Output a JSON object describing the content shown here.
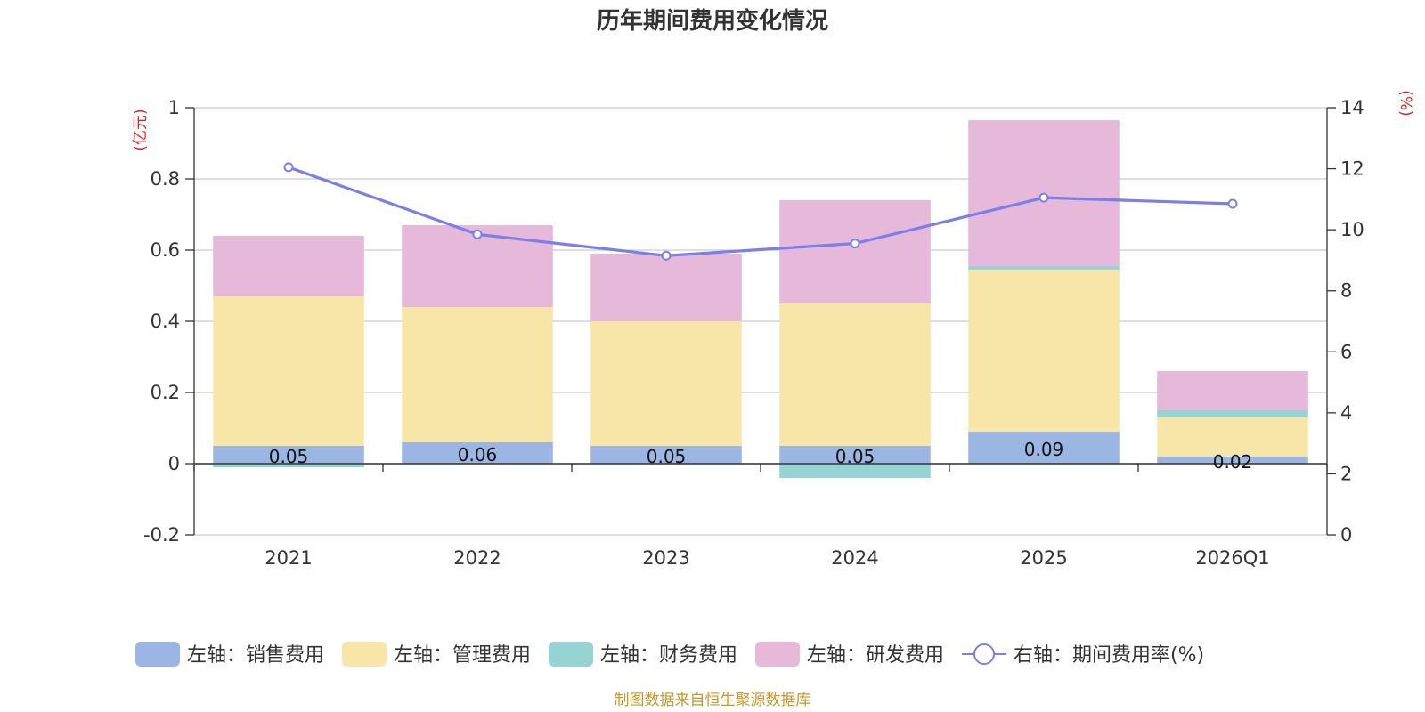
{
  "chart_data": {
    "type": "bar",
    "title": "历年期间费用变化情况",
    "categories": [
      "2021",
      "2022",
      "2023",
      "2024",
      "2025",
      "2026Q1"
    ],
    "stacked": true,
    "y_left": {
      "unit": "(亿元)",
      "range": [
        -0.2,
        1
      ],
      "ticks": [
        "-0.2",
        "0",
        "0.2",
        "0.4",
        "0.6",
        "0.8",
        "1"
      ]
    },
    "y_right": {
      "unit": "(%)",
      "range": [
        0,
        14
      ],
      "ticks": [
        "0",
        "2",
        "4",
        "6",
        "8",
        "10",
        "12",
        "14"
      ]
    },
    "series": [
      {
        "name": "左轴：销售费用",
        "axis": "left",
        "type": "bar",
        "color": "#9bb6e2",
        "values": [
          0.05,
          0.06,
          0.05,
          0.05,
          0.09,
          0.02
        ],
        "labels": [
          "0.05",
          "0.06",
          "0.05",
          "0.05",
          "0.09",
          "0.02"
        ]
      },
      {
        "name": "左轴：管理费用",
        "axis": "left",
        "type": "bar",
        "color": "#f8e6a8",
        "values": [
          0.42,
          0.38,
          0.35,
          0.4,
          0.455,
          0.11
        ]
      },
      {
        "name": "左轴：财务费用",
        "axis": "left",
        "type": "bar",
        "color": "#96d4d4",
        "values": [
          -0.01,
          0.0,
          0.0,
          -0.04,
          0.01,
          0.02
        ]
      },
      {
        "name": "左轴：研发费用",
        "axis": "left",
        "type": "bar",
        "color": "#e6b8d9",
        "values": [
          0.17,
          0.23,
          0.19,
          0.29,
          0.41,
          0.11
        ]
      },
      {
        "name": "右轴：期间费用率(%)",
        "axis": "right",
        "type": "line",
        "color": "#7b7fe8",
        "values": [
          12.05,
          9.85,
          9.15,
          9.55,
          11.05,
          10.85
        ]
      }
    ],
    "grid": true,
    "legend_position": "bottom"
  },
  "source_note": "制图数据来自恒生聚源数据库"
}
